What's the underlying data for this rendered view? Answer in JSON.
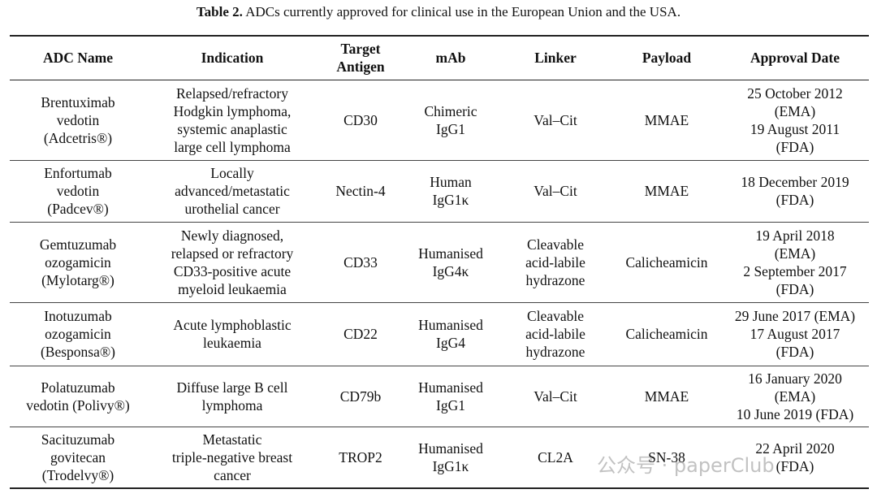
{
  "caption": {
    "label": "Table 2.",
    "text": "ADCs currently approved for clinical use in the European Union and the USA."
  },
  "table": {
    "header": [
      [
        "ADC Name"
      ],
      [
        "Indication"
      ],
      [
        "Target",
        "Antigen"
      ],
      [
        "mAb"
      ],
      [
        "Linker"
      ],
      [
        "Payload"
      ],
      [
        "Approval Date"
      ]
    ],
    "rows": [
      [
        [
          "Brentuximab",
          "vedotin",
          "(Adcetris®)"
        ],
        [
          "Relapsed/refractory",
          "Hodgkin lymphoma,",
          "systemic anaplastic",
          "large cell lymphoma"
        ],
        [
          "CD30"
        ],
        [
          "Chimeric",
          "IgG1"
        ],
        [
          "Val–Cit"
        ],
        [
          "MMAE"
        ],
        [
          "25 October 2012",
          "(EMA)",
          "19 August 2011",
          "(FDA)"
        ]
      ],
      [
        [
          "Enfortumab",
          "vedotin",
          "(Padcev®)"
        ],
        [
          "Locally",
          "advanced/metastatic",
          "urothelial cancer"
        ],
        [
          "Nectin-4"
        ],
        [
          "Human",
          "IgG1κ"
        ],
        [
          "Val–Cit"
        ],
        [
          "MMAE"
        ],
        [
          "18 December 2019",
          "(FDA)"
        ]
      ],
      [
        [
          "Gemtuzumab",
          "ozogamicin",
          "(Mylotarg®)"
        ],
        [
          "Newly diagnosed,",
          "relapsed or refractory",
          "CD33-positive acute",
          "myeloid leukaemia"
        ],
        [
          "CD33"
        ],
        [
          "Humanised",
          "IgG4κ"
        ],
        [
          "Cleavable",
          "acid-labile",
          "hydrazone"
        ],
        [
          "Calicheamicin"
        ],
        [
          "19 April 2018",
          "(EMA)",
          "2 September 2017",
          "(FDA)"
        ]
      ],
      [
        [
          "Inotuzumab",
          "ozogamicin",
          "(Besponsa®)"
        ],
        [
          "Acute lymphoblastic",
          "leukaemia"
        ],
        [
          "CD22"
        ],
        [
          "Humanised",
          "IgG4"
        ],
        [
          "Cleavable",
          "acid-labile",
          "hydrazone"
        ],
        [
          "Calicheamicin"
        ],
        [
          "29 June 2017 (EMA)",
          "17 August 2017",
          "(FDA)"
        ]
      ],
      [
        [
          "Polatuzumab",
          "vedotin (Polivy®)"
        ],
        [
          "Diffuse large B cell",
          "lymphoma"
        ],
        [
          "CD79b"
        ],
        [
          "Humanised",
          "IgG1"
        ],
        [
          "Val–Cit"
        ],
        [
          "MMAE"
        ],
        [
          "16 January 2020",
          "(EMA)",
          "10 June 2019 (FDA)"
        ]
      ],
      [
        [
          "Sacituzumab",
          "govitecan",
          "(Trodelvy®)"
        ],
        [
          "Metastatic",
          "triple-negative breast",
          "cancer"
        ],
        [
          "TROP2"
        ],
        [
          "Humanised",
          "IgG1κ"
        ],
        [
          "CL2A"
        ],
        [
          "SN-38"
        ],
        [
          "22 April 2020",
          "(FDA)"
        ]
      ]
    ]
  },
  "watermark": "公众号 · paperClub"
}
